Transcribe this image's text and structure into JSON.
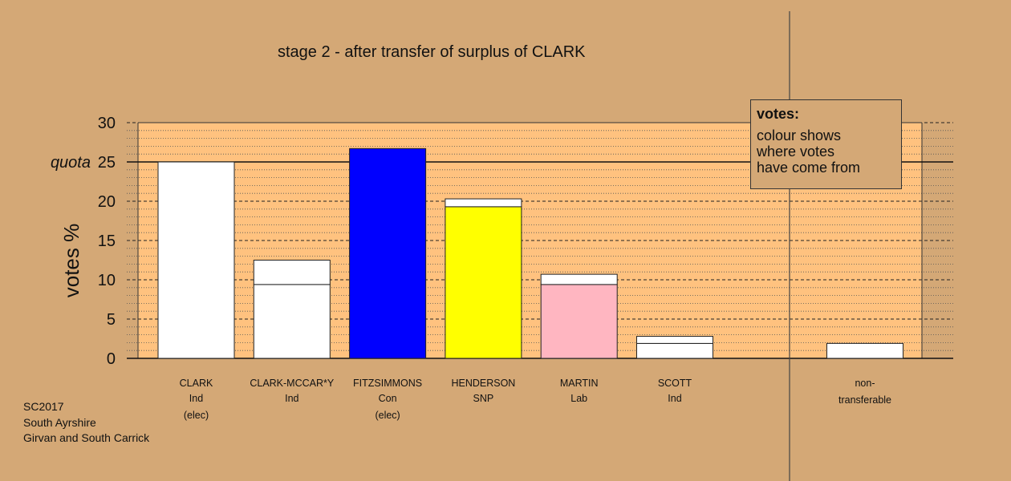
{
  "chart_data": {
    "type": "bar",
    "title": "stage 2 - after transfer of surplus of CLARK",
    "ylabel": "votes %",
    "ylim": [
      0,
      30
    ],
    "yticks": [
      0,
      5,
      10,
      15,
      20,
      25,
      30
    ],
    "quota": {
      "label": "quota",
      "value": 25
    },
    "candidates": [
      {
        "name": "CLARK",
        "party": "Ind",
        "status": "(elec)",
        "color": "#ffffff",
        "prior": 25.0,
        "transfer": 0
      },
      {
        "name": "CLARK-MCCAR*Y",
        "party": "Ind",
        "status": "",
        "color": "#ffffff",
        "prior": 9.4,
        "transfer": 3.1
      },
      {
        "name": "FITZSIMMONS",
        "party": "Con",
        "status": "(elec)",
        "color": "#0000ff",
        "prior": 26.7,
        "transfer": 0
      },
      {
        "name": "HENDERSON",
        "party": "SNP",
        "status": "",
        "color": "#ffff00",
        "prior": 19.3,
        "transfer": 1.0
      },
      {
        "name": "MARTIN",
        "party": "Lab",
        "status": "",
        "color": "#ffb6c1",
        "prior": 9.4,
        "transfer": 1.3
      },
      {
        "name": "SCOTT",
        "party": "Ind",
        "status": "",
        "color": "#ffffff",
        "prior": 1.9,
        "transfer": 0.9
      }
    ],
    "nontransferable": {
      "label_line1": "non-",
      "label_line2": "transferable",
      "value": 1.9
    }
  },
  "legend": {
    "heading": "votes:",
    "body": "colour shows\nwhere votes\nhave come from"
  },
  "footer": {
    "line1": "SC2017",
    "line2": "South Ayrshire",
    "line3": "Girvan and South Carrick"
  }
}
